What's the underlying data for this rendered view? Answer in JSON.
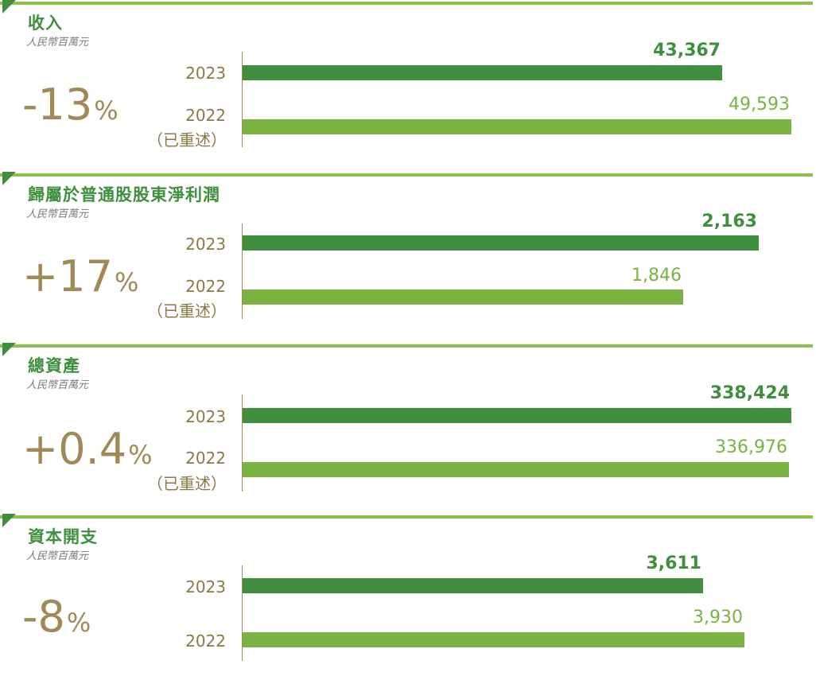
{
  "unit_label": "人民幣百萬元",
  "restated_label": "（已重述）",
  "colors": {
    "current": "#3f8f3f",
    "previous": "#7ab342",
    "change": "#a08956",
    "rule": "#8dc24a"
  },
  "panels": [
    {
      "title": "收入",
      "change": "-13",
      "change_unit": "%"
    },
    {
      "title": "歸屬於普通股股東淨利潤",
      "change": "+17",
      "change_unit": "%"
    },
    {
      "title": "總資產",
      "change": "+0.4",
      "change_unit": "%"
    },
    {
      "title": "資本開支",
      "change": "-8",
      "change_unit": "%"
    }
  ],
  "chart_data": [
    {
      "type": "bar",
      "orientation": "horizontal",
      "title": "收入",
      "categories": [
        "2023",
        "2022"
      ],
      "values": [
        43367,
        49593
      ],
      "value_labels": [
        "43,367",
        "49,593"
      ],
      "restated": [
        false,
        true
      ],
      "xlim": [
        0,
        49593
      ]
    },
    {
      "type": "bar",
      "orientation": "horizontal",
      "title": "歸屬於普通股股東淨利潤",
      "categories": [
        "2023",
        "2022"
      ],
      "values": [
        2163,
        1846
      ],
      "value_labels": [
        "2,163",
        "1,846"
      ],
      "restated": [
        false,
        true
      ],
      "xlim": [
        0,
        2300
      ]
    },
    {
      "type": "bar",
      "orientation": "horizontal",
      "title": "總資產",
      "categories": [
        "2023",
        "2022"
      ],
      "values": [
        338424,
        336976
      ],
      "value_labels": [
        "338,424",
        "336,976"
      ],
      "restated": [
        false,
        true
      ],
      "xlim": [
        0,
        338424
      ]
    },
    {
      "type": "bar",
      "orientation": "horizontal",
      "title": "資本開支",
      "categories": [
        "2023",
        "2022"
      ],
      "values": [
        3611,
        3930
      ],
      "value_labels": [
        "3,611",
        "3,930"
      ],
      "restated": [
        false,
        false
      ],
      "xlim": [
        0,
        4300
      ]
    }
  ]
}
